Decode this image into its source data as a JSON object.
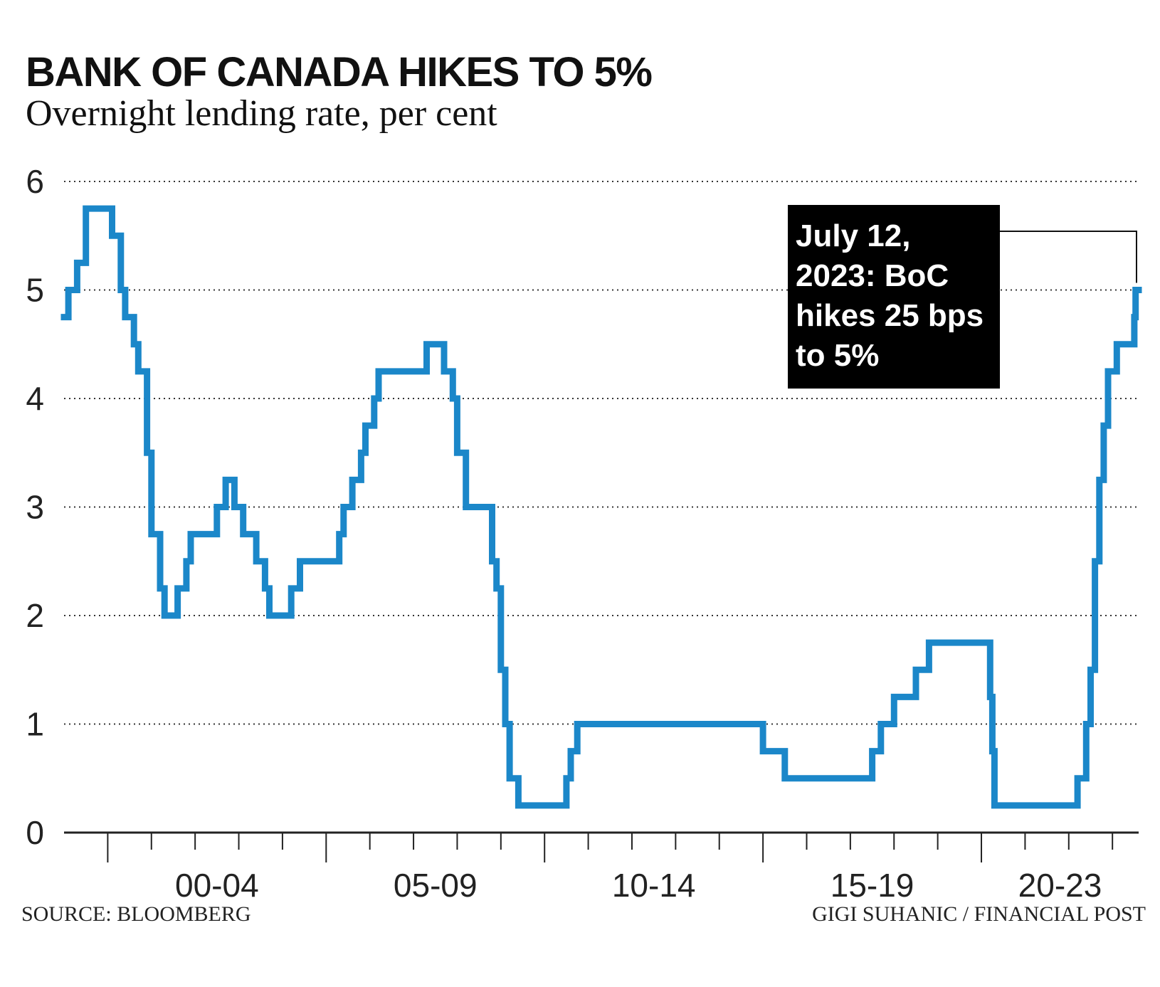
{
  "header": {
    "title": "BANK OF CANADA HIKES TO 5%",
    "subtitle": "Overnight lending rate, per cent"
  },
  "footer": {
    "source": "SOURCE: BLOOMBERG",
    "credit": "GIGI SUHANIC / FINANCIAL POST"
  },
  "annotation": {
    "lines": [
      "July 12,",
      "2023: BoC",
      "hikes 25 bps",
      "to 5%"
    ]
  },
  "chart_data": {
    "type": "line",
    "title": "BANK OF CANADA HIKES TO 5%",
    "subtitle": "Overnight lending rate, per cent",
    "ylim": [
      0,
      6
    ],
    "xlim": [
      1999.0,
      2023.6
    ],
    "yticks": [
      "0",
      "1",
      "2",
      "3",
      "4",
      "5",
      "6"
    ],
    "xtick_labels": [
      {
        "label": "00-04",
        "x": 2002.5
      },
      {
        "label": "05-09",
        "x": 2007.5
      },
      {
        "label": "10-14",
        "x": 2012.5
      },
      {
        "label": "15-19",
        "x": 2017.5
      },
      {
        "label": "20-23",
        "x": 2021.8
      }
    ],
    "grid": "horizontal dotted",
    "line_color": "#1b87c9",
    "series": [
      {
        "points": [
          [
            1999.0,
            4.75
          ],
          [
            1999.1,
            5.0
          ],
          [
            1999.3,
            5.25
          ],
          [
            1999.5,
            5.75
          ],
          [
            2000.1,
            5.5
          ],
          [
            2000.3,
            5.0
          ],
          [
            2000.4,
            4.75
          ],
          [
            2000.6,
            4.5
          ],
          [
            2000.7,
            4.25
          ],
          [
            2000.9,
            3.5
          ],
          [
            2001.0,
            2.75
          ],
          [
            2001.2,
            2.25
          ],
          [
            2001.3,
            2.0
          ],
          [
            2001.6,
            2.25
          ],
          [
            2001.8,
            2.5
          ],
          [
            2001.9,
            2.75
          ],
          [
            2002.5,
            3.0
          ],
          [
            2002.7,
            3.25
          ],
          [
            2002.9,
            3.0
          ],
          [
            2003.1,
            2.75
          ],
          [
            2003.4,
            2.5
          ],
          [
            2003.6,
            2.25
          ],
          [
            2003.7,
            2.0
          ],
          [
            2004.2,
            2.25
          ],
          [
            2004.4,
            2.5
          ],
          [
            2005.3,
            2.75
          ],
          [
            2005.4,
            3.0
          ],
          [
            2005.6,
            3.25
          ],
          [
            2005.8,
            3.5
          ],
          [
            2005.9,
            3.75
          ],
          [
            2006.1,
            4.0
          ],
          [
            2006.2,
            4.25
          ],
          [
            2007.3,
            4.5
          ],
          [
            2007.7,
            4.25
          ],
          [
            2007.9,
            4.0
          ],
          [
            2008.0,
            3.5
          ],
          [
            2008.2,
            3.0
          ],
          [
            2008.8,
            2.5
          ],
          [
            2008.9,
            2.25
          ],
          [
            2009.0,
            1.5
          ],
          [
            2009.1,
            1.0
          ],
          [
            2009.2,
            0.5
          ],
          [
            2009.4,
            0.25
          ],
          [
            2010.5,
            0.5
          ],
          [
            2010.6,
            0.75
          ],
          [
            2010.75,
            1.0
          ],
          [
            2015.0,
            0.75
          ],
          [
            2015.5,
            0.5
          ],
          [
            2017.5,
            0.75
          ],
          [
            2017.7,
            1.0
          ],
          [
            2018.0,
            1.25
          ],
          [
            2018.5,
            1.5
          ],
          [
            2018.8,
            1.75
          ],
          [
            2020.2,
            1.25
          ],
          [
            2020.25,
            0.75
          ],
          [
            2020.3,
            0.25
          ],
          [
            2022.2,
            0.5
          ],
          [
            2022.4,
            1.0
          ],
          [
            2022.5,
            1.5
          ],
          [
            2022.6,
            2.5
          ],
          [
            2022.7,
            3.25
          ],
          [
            2022.8,
            3.75
          ],
          [
            2022.9,
            4.25
          ],
          [
            2023.1,
            4.5
          ],
          [
            2023.5,
            4.75
          ],
          [
            2023.53,
            5.0
          ]
        ],
        "end_x": 2023.6
      }
    ]
  }
}
